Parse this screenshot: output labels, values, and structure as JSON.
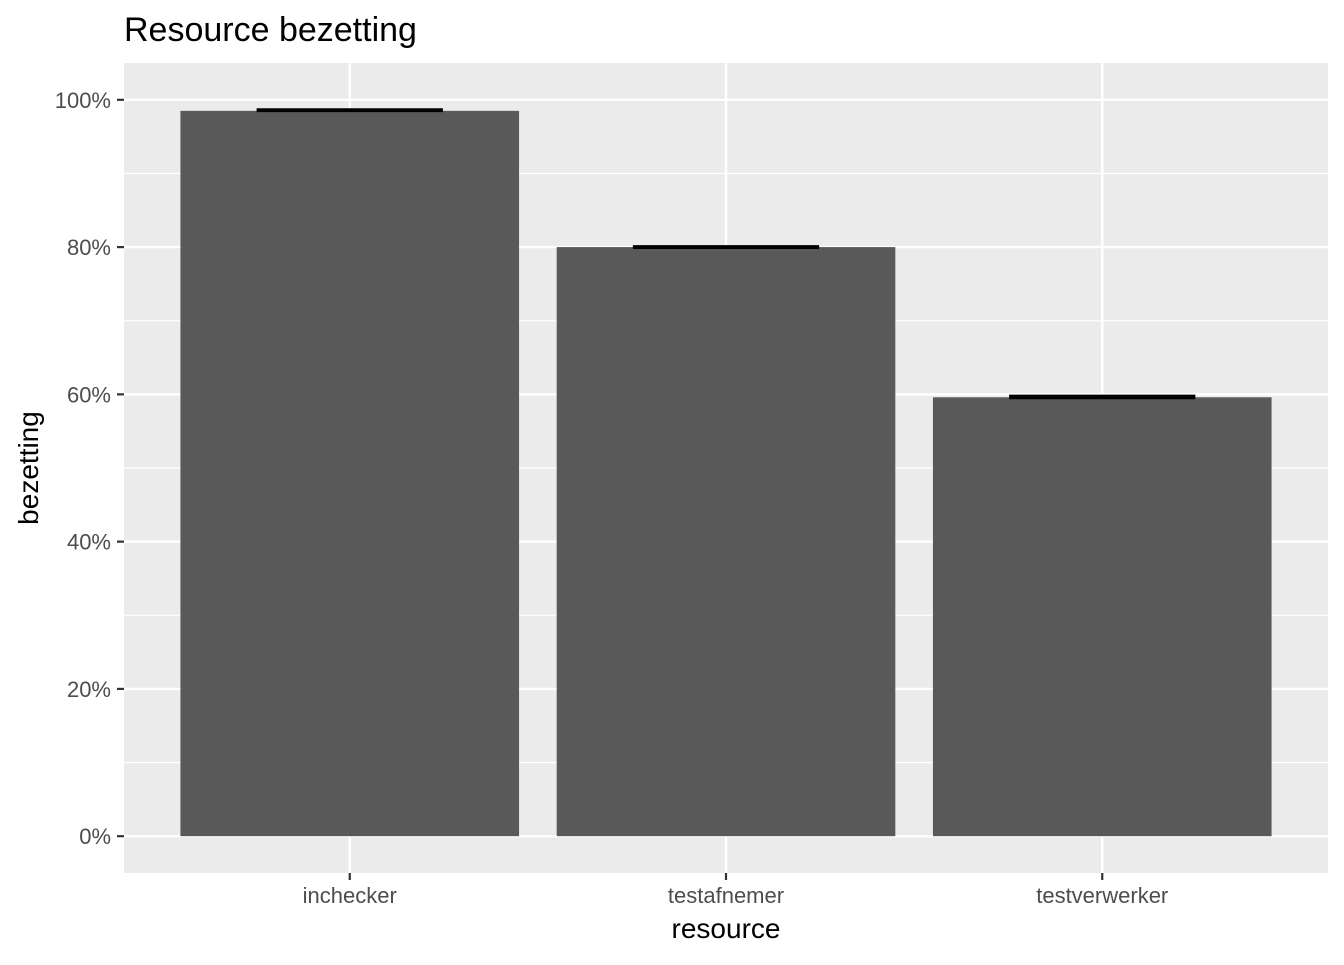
{
  "chart_data": {
    "type": "bar",
    "title": "Resource bezetting",
    "xlabel": "resource",
    "ylabel": "bezetting",
    "categories": [
      "inchecker",
      "testafnemer",
      "testverwerker"
    ],
    "values": [
      0.985,
      0.8,
      0.596
    ],
    "error_bars": [
      {
        "low": 0.985,
        "high": 0.987
      },
      {
        "low": 0.799,
        "high": 0.801
      },
      {
        "low": 0.595,
        "high": 0.598
      }
    ],
    "ylim": [
      -0.05,
      1.05
    ],
    "yticks": [
      0,
      0.2,
      0.4,
      0.6,
      0.8,
      1.0
    ],
    "ytick_labels": [
      "0%",
      "20%",
      "40%",
      "60%",
      "80%",
      "100%"
    ],
    "yminor": [
      0.1,
      0.3,
      0.5,
      0.7,
      0.9
    ],
    "grid": true,
    "legend": "none",
    "colors": {
      "bar": "#595959",
      "panel": "#ebebeb",
      "grid": "#ffffff",
      "axis_text": "#4d4d4d",
      "title_text": "#000000",
      "errorbar": "#000000"
    }
  }
}
